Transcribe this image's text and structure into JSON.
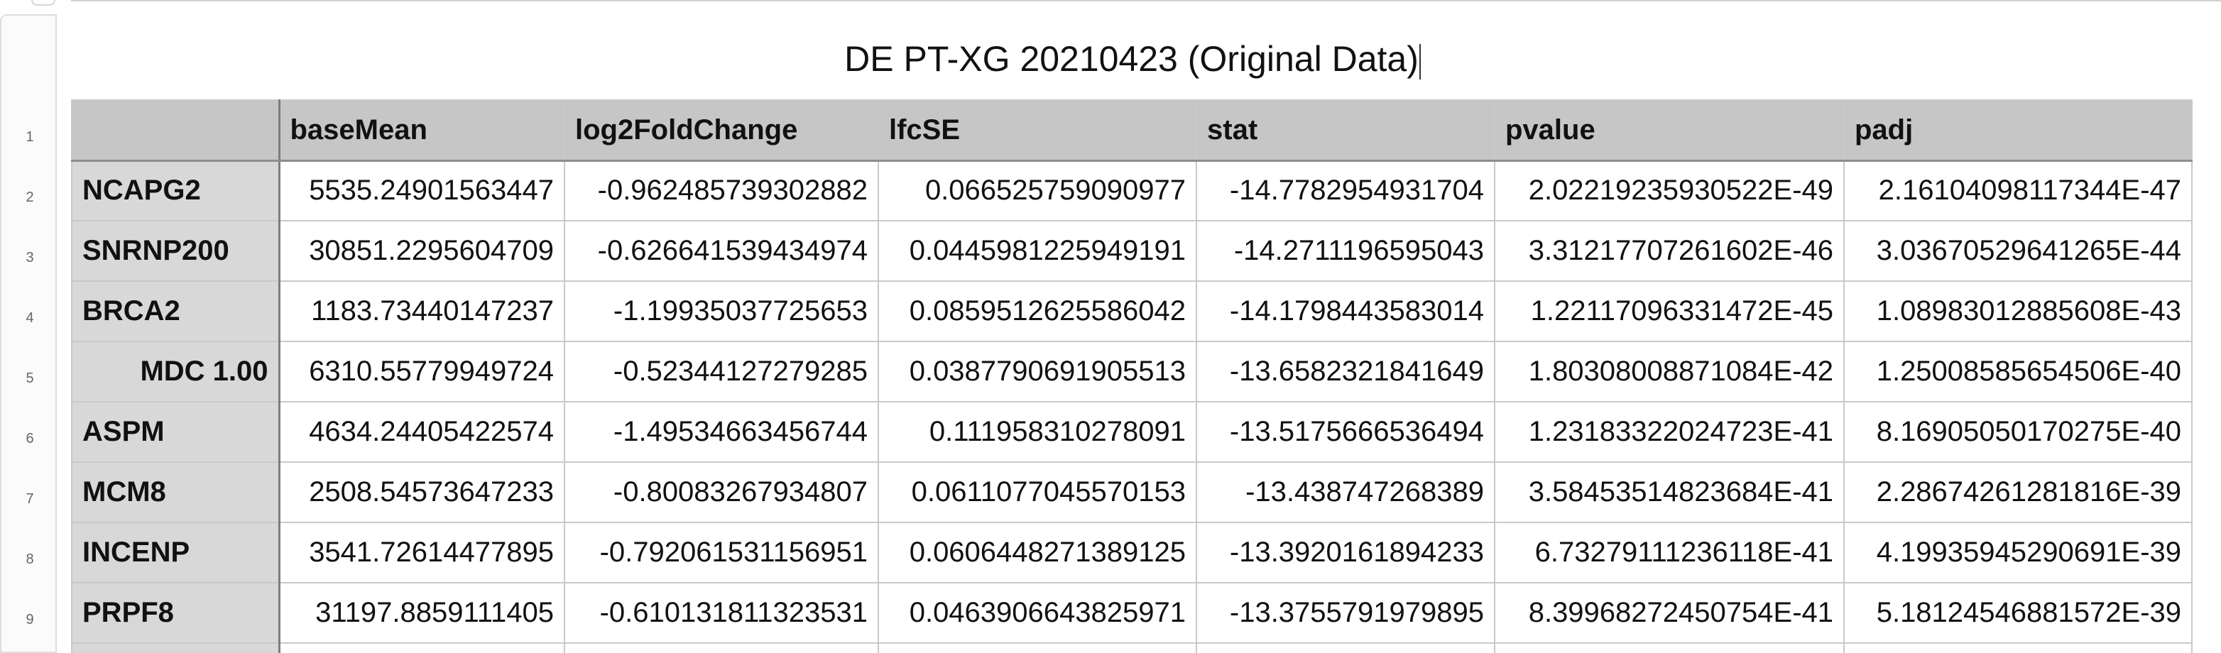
{
  "sheet": {
    "title": "DE PT-XG 20210423 (Original Data)"
  },
  "table": {
    "columns": [
      "",
      "baseMean",
      "log2FoldChange",
      "lfcSE",
      "stat",
      "pvalue",
      "padj"
    ],
    "rows": [
      {
        "num": "2",
        "gene": "NCAPG2",
        "baseMean": "5535.24901563447",
        "log2FoldChange": "-0.962485739302882",
        "lfcSE": "0.066525759090977",
        "stat": "-14.7782954931704",
        "pvalue": "2.02219235930522E-49",
        "padj": "2.16104098117344E-47"
      },
      {
        "num": "3",
        "gene": "SNRNP200",
        "baseMean": "30851.2295604709",
        "log2FoldChange": "-0.626641539434974",
        "lfcSE": "0.0445981225949191",
        "stat": "-14.2711196595043",
        "pvalue": "3.31217707261602E-46",
        "padj": "3.03670529641265E-44"
      },
      {
        "num": "4",
        "gene": "BRCA2",
        "baseMean": "1183.73440147237",
        "log2FoldChange": "-1.19935037725653",
        "lfcSE": "0.0859512625586042",
        "stat": "-14.1798443583014",
        "pvalue": "1.22117096331472E-45",
        "padj": "1.08983012885608E-43"
      },
      {
        "num": "5",
        "gene": "MDC 1.00",
        "baseMean": "6310.55779949724",
        "log2FoldChange": "-0.52344127279285",
        "lfcSE": "0.0387790691905513",
        "stat": "-13.6582321841649",
        "pvalue": "1.80308008871084E-42",
        "padj": "1.25008585654506E-40"
      },
      {
        "num": "6",
        "gene": "ASPM",
        "baseMean": "4634.24405422574",
        "log2FoldChange": "-1.49534663456744",
        "lfcSE": "0.111958310278091",
        "stat": "-13.5175666536494",
        "pvalue": "1.23183322024723E-41",
        "padj": "8.16905050170275E-40"
      },
      {
        "num": "7",
        "gene": "MCM8",
        "baseMean": "2508.54573647233",
        "log2FoldChange": "-0.80083267934807",
        "lfcSE": "0.0611077045570153",
        "stat": "-13.438747268389",
        "pvalue": "3.58453514823684E-41",
        "padj": "2.28674261281816E-39"
      },
      {
        "num": "8",
        "gene": "INCENP",
        "baseMean": "3541.72614477895",
        "log2FoldChange": "-0.792061531156951",
        "lfcSE": "0.0606448271389125",
        "stat": "-13.3920161894233",
        "pvalue": "6.73279111236118E-41",
        "padj": "4.19935945290691E-39"
      },
      {
        "num": "9",
        "gene": "PRPF8",
        "baseMean": "31197.8859111405",
        "log2FoldChange": "-0.610131811323531",
        "lfcSE": "0.0463906643825971",
        "stat": "-13.3755791979895",
        "pvalue": "8.39968272450754E-41",
        "padj": "5.18124546881572E-39"
      }
    ],
    "header_row_num": "1"
  }
}
